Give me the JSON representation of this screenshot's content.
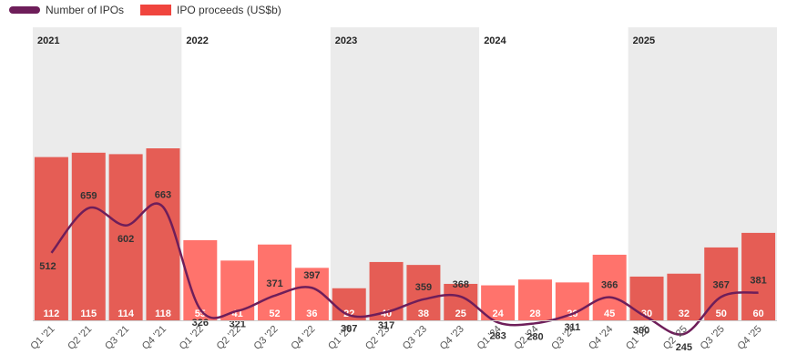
{
  "legend": {
    "ipos_label": "Number of IPOs",
    "proceeds_label": "IPO proceeds (US$b)"
  },
  "colors": {
    "line": "#6e1e5a",
    "bar_dark": "#e55d55",
    "bar_light": "#ff736c",
    "band": "#ebebeb",
    "label": "#333333",
    "bar_label": "#ffffff"
  },
  "chart_data": {
    "type": "bar",
    "categories": [
      "Q1 '21",
      "Q2 '21",
      "Q3 '21",
      "Q4 '21",
      "Q1 '22",
      "Q2 '22",
      "Q3 '22",
      "Q4 '22",
      "Q1 '23",
      "Q2 '23",
      "Q3 '23",
      "Q4 '23",
      "Q1 '24",
      "Q2 '24",
      "Q3 '24",
      "Q4 '24",
      "Q1 '25",
      "Q2 '25",
      "Q3 '25",
      "Q4 '25"
    ],
    "years": [
      {
        "label": "2021",
        "start": 0,
        "end": 3,
        "shaded": true
      },
      {
        "label": "2022",
        "start": 4,
        "end": 7,
        "shaded": false
      },
      {
        "label": "2023",
        "start": 8,
        "end": 11,
        "shaded": true
      },
      {
        "label": "2024",
        "start": 12,
        "end": 15,
        "shaded": false
      },
      {
        "label": "2025",
        "start": 16,
        "end": 19,
        "shaded": true
      }
    ],
    "series": [
      {
        "name": "IPO proceeds (US$b)",
        "type": "bar",
        "values": [
          112,
          115,
          114,
          118,
          55,
          41,
          52,
          36,
          22,
          40,
          38,
          25,
          24,
          28,
          26,
          45,
          30,
          32,
          50,
          60
        ]
      },
      {
        "name": "Number of IPOs",
        "type": "line",
        "values": [
          512,
          659,
          602,
          663,
          326,
          321,
          371,
          397,
          307,
          317,
          359,
          368,
          283,
          280,
          311,
          366,
          300,
          245,
          367,
          381
        ]
      }
    ],
    "xlabel": "",
    "ylabel": "",
    "grid": false,
    "legend_position": "top-left"
  }
}
